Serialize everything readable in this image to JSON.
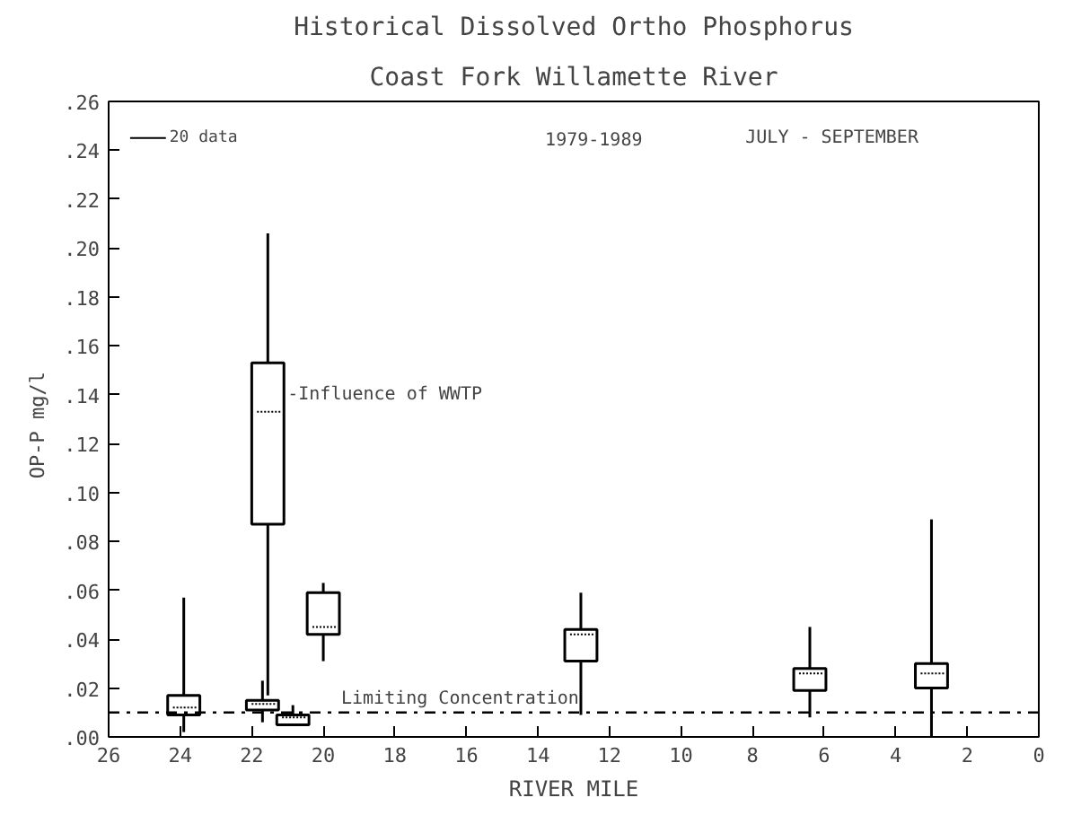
{
  "chart_data": {
    "type": "box",
    "title": "Historical Dissolved Ortho Phosphorus",
    "subtitle": "Coast Fork Willamette River",
    "xlabel": "RIVER MILE",
    "ylabel": "OP-P  mg/l",
    "x": [
      23.9,
      21.7,
      21.55,
      20.85,
      20.0,
      12.8,
      6.4,
      3.0
    ],
    "boxes": [
      {
        "low": 0.002,
        "q1": 0.009,
        "median": 0.012,
        "q3": 0.017,
        "high": 0.057
      },
      {
        "low": 0.006,
        "q1": 0.011,
        "median": 0.0135,
        "q3": 0.015,
        "high": 0.023
      },
      {
        "low": 0.017,
        "q1": 0.087,
        "median": 0.133,
        "q3": 0.153,
        "high": 0.206
      },
      {
        "low": 0.005,
        "q1": 0.005,
        "median": 0.008,
        "q3": 0.009,
        "high": 0.013
      },
      {
        "low": 0.031,
        "q1": 0.042,
        "median": 0.045,
        "q3": 0.059,
        "high": 0.063
      },
      {
        "low": 0.009,
        "q1": 0.031,
        "median": 0.042,
        "q3": 0.044,
        "high": 0.059
      },
      {
        "low": 0.008,
        "q1": 0.019,
        "median": 0.026,
        "q3": 0.028,
        "high": 0.045
      },
      {
        "low": 0.0,
        "q1": 0.02,
        "median": 0.026,
        "q3": 0.03,
        "high": 0.089
      }
    ],
    "xlim": [
      26,
      0
    ],
    "xticks": [
      26,
      24,
      22,
      20,
      18,
      16,
      14,
      12,
      10,
      8,
      6,
      4,
      2,
      0
    ],
    "ylim": [
      0,
      0.26
    ],
    "yticks": [
      {
        "value": 0,
        "label": ".00"
      },
      {
        "value": 0.02,
        "label": ".02"
      },
      {
        "value": 0.04,
        "label": ".04"
      },
      {
        "value": 0.06,
        "label": ".06"
      },
      {
        "value": 0.08,
        "label": ".08"
      },
      {
        "value": 0.1,
        "label": ".10"
      },
      {
        "value": 0.12,
        "label": ".12"
      },
      {
        "value": 0.14,
        "label": ".14"
      },
      {
        "value": 0.16,
        "label": ".16"
      },
      {
        "value": 0.18,
        "label": ".18"
      },
      {
        "value": 0.2,
        "label": ".20"
      },
      {
        "value": 0.22,
        "label": ".22"
      },
      {
        "value": 0.24,
        "label": ".24"
      },
      {
        "value": 0.26,
        "label": ".26"
      }
    ],
    "ref_lines": [
      {
        "axis": "y",
        "value": 0.01,
        "label": "Limiting Concentration",
        "line_style": "dashdot",
        "color": "#000000"
      }
    ],
    "annotations": [
      {
        "text": "-Influence of WWTP",
        "x": 21.0,
        "y": 0.14
      },
      "20 data",
      "1979-1989",
      "JULY - SEPTEMBER"
    ]
  }
}
